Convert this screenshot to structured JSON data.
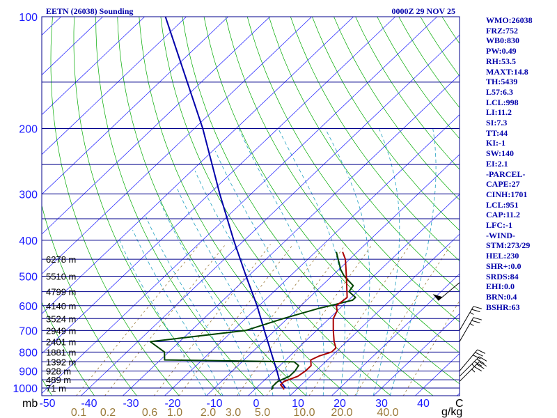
{
  "chart_data": {
    "type": "skew-t",
    "title_left": "EETN (26038) Sounding",
    "title_right": "0000Z 29 NOV 25",
    "y_axis_unit": "mb",
    "x_axis_unit": "C",
    "mixing_unit": "g/kg",
    "pressure_ticks": [
      100,
      200,
      300,
      400,
      500,
      600,
      700,
      800,
      900,
      1000
    ],
    "pressure_lines": [
      100,
      150,
      200,
      250,
      300,
      350,
      400,
      450,
      500,
      550,
      600,
      650,
      700,
      750,
      800,
      850,
      900,
      950,
      1000
    ],
    "temp_ticks": [
      -50,
      -40,
      -30,
      -20,
      -10,
      0,
      10,
      20,
      30,
      40
    ],
    "mixing_ratio_labels": [
      "0.1",
      "0.2",
      "0.6",
      "1.0",
      "2.0",
      "3.0",
      "5.0",
      "10.0",
      "20.0",
      "40.0"
    ],
    "mixing_ratio_values": [
      0.1,
      0.2,
      0.6,
      1.0,
      2.0,
      3.0,
      5.0,
      10.0,
      20.0,
      40.0
    ],
    "mixing_ratio_positions_c": [
      -42.5,
      -35.5,
      -25.5,
      -19.5,
      -11.5,
      -5.5,
      1.5,
      11.5,
      20.5,
      31.5
    ],
    "height_labels": [
      {
        "text": "6278 m",
        "p": 450
      },
      {
        "text": "5510 m",
        "p": 500
      },
      {
        "text": "4799 m",
        "p": 550
      },
      {
        "text": "4140 m",
        "p": 600
      },
      {
        "text": "3524 m",
        "p": 650
      },
      {
        "text": "2949 m",
        "p": 700
      },
      {
        "text": "2401 m",
        "p": 750
      },
      {
        "text": "1881 m",
        "p": 800
      },
      {
        "text": "1392 m",
        "p": 850
      },
      {
        "text": "928 m",
        "p": 900
      },
      {
        "text": "489 m",
        "p": 950
      },
      {
        "text": "71 m",
        "p": 1000
      }
    ],
    "temperature_profile": [
      {
        "p": 1010,
        "t": 7.0
      },
      {
        "p": 1000,
        "t": 6.5
      },
      {
        "p": 980,
        "t": 5.0
      },
      {
        "p": 960,
        "t": 5.0
      },
      {
        "p": 930,
        "t": 7.0
      },
      {
        "p": 900,
        "t": 7.5
      },
      {
        "p": 870,
        "t": 7.5
      },
      {
        "p": 850,
        "t": 6.5
      },
      {
        "p": 840,
        "t": 6.0
      },
      {
        "p": 820,
        "t": 7.0
      },
      {
        "p": 800,
        "t": 9.0
      },
      {
        "p": 780,
        "t": 9.0
      },
      {
        "p": 750,
        "t": 7.0
      },
      {
        "p": 700,
        "t": 4.0
      },
      {
        "p": 650,
        "t": 1.0
      },
      {
        "p": 620,
        "t": 0.0
      },
      {
        "p": 600,
        "t": -1.5
      },
      {
        "p": 570,
        "t": -1.0
      },
      {
        "p": 550,
        "t": -2.5
      },
      {
        "p": 500,
        "t": -6.5
      },
      {
        "p": 450,
        "t": -11.0
      },
      {
        "p": 430,
        "t": -13.5
      }
    ],
    "dewpoint_profile": [
      {
        "p": 1010,
        "t": 4.0
      },
      {
        "p": 1000,
        "t": 4.0
      },
      {
        "p": 990,
        "t": 3.5
      },
      {
        "p": 960,
        "t": 3.5
      },
      {
        "p": 930,
        "t": 5.0
      },
      {
        "p": 900,
        "t": 5.0
      },
      {
        "p": 870,
        "t": 4.5
      },
      {
        "p": 850,
        "t": 2.5
      },
      {
        "p": 840,
        "t": -29.0
      },
      {
        "p": 800,
        "t": -31.0
      },
      {
        "p": 750,
        "t": -37.0
      },
      {
        "p": 700,
        "t": -17.0
      },
      {
        "p": 650,
        "t": -11.0
      },
      {
        "p": 610,
        "t": -5.0
      },
      {
        "p": 600,
        "t": -3.0
      },
      {
        "p": 580,
        "t": 1.0
      },
      {
        "p": 570,
        "t": 1.0
      },
      {
        "p": 550,
        "t": -2.0
      },
      {
        "p": 530,
        "t": -2.5
      },
      {
        "p": 500,
        "t": -7.0
      },
      {
        "p": 480,
        "t": -9.5
      },
      {
        "p": 430,
        "t": -15.0
      }
    ],
    "parcel_profile": [
      {
        "p": 1000,
        "t": 7.0
      },
      {
        "p": 951,
        "t": 3.5
      },
      {
        "p": 900,
        "t": 0.7
      },
      {
        "p": 800,
        "t": -5.5
      },
      {
        "p": 700,
        "t": -12.5
      },
      {
        "p": 600,
        "t": -20.5
      },
      {
        "p": 500,
        "t": -30.5
      },
      {
        "p": 400,
        "t": -42.5
      },
      {
        "p": 300,
        "t": -57.5
      },
      {
        "p": 200,
        "t": -78.0
      },
      {
        "p": 100,
        "t": -115.0
      }
    ],
    "wind_barbs": [
      {
        "p": 960,
        "dir": 45,
        "knots": 35
      },
      {
        "p": 930,
        "dir": 45,
        "knots": 35
      },
      {
        "p": 900,
        "dir": 40,
        "knots": 30
      },
      {
        "p": 750,
        "dir": 30,
        "knots": 25
      },
      {
        "p": 700,
        "dir": 30,
        "knots": 25
      },
      {
        "p": 520,
        "dir": 230,
        "knots": 50
      }
    ]
  },
  "indices": [
    "WMO:26038",
    "FRZ:752",
    "WB0:830",
    "PW:0.49",
    "RH:53.5",
    "MAXT:14.8",
    "TH:5439",
    "L57:6.3",
    "LCL:998",
    "LI:11.2",
    "SI:7.3",
    "TT:44",
    "KI:-1",
    "SW:140",
    "EI:2.1",
    "-PARCEL-",
    "CAPE:27",
    "CINH:1701",
    "LCL:951",
    "CAP:11.2",
    "LFC:-1",
    "-WIND-",
    "STM:273/29",
    "HEL:230",
    "SHR+:0.0",
    "SRDS:84",
    "EHI:0.0",
    "BRN:0.4",
    "BSHR:63"
  ],
  "colors": {
    "isobar": "#00008b",
    "isotherm": "#1a1aff",
    "dry_adiabat": "#00aa00",
    "moist_adiabat": "#1fa0c0",
    "mixing_ratio": "#9a7a3a",
    "temperature": "#aa0000",
    "dewpoint": "#004400",
    "parcel": "#0000aa",
    "wind": "#000000",
    "text": "#0000aa"
  }
}
